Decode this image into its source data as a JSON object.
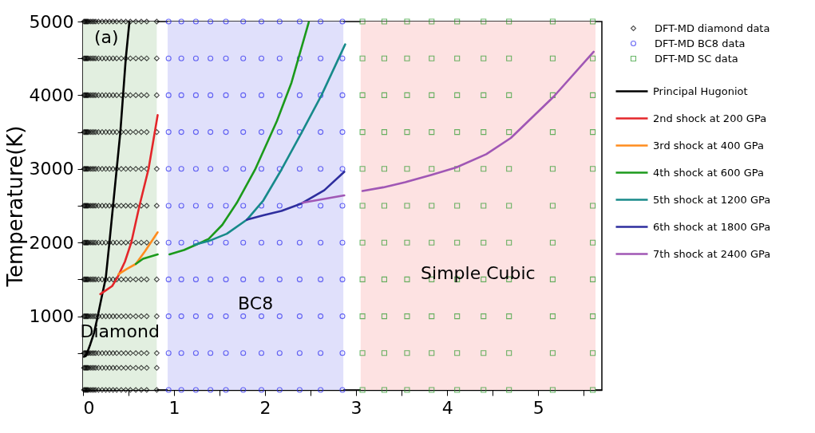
{
  "chart_data": {
    "type": "line",
    "ylabel": "Temperature(K)",
    "xlim": [
      0,
      5.7
    ],
    "ylim": [
      0,
      5000
    ],
    "xticks": [
      0,
      {
        "value": 0.5,
        "label": null
      },
      1,
      {
        "value": 1.5,
        "label": null
      },
      2,
      {
        "value": 2.5,
        "label": null
      },
      3,
      {
        "value": 3.5,
        "label": null
      },
      4,
      {
        "value": 4.5,
        "label": null
      },
      5,
      {
        "value": 5.5,
        "label": null
      }
    ],
    "yticks": [
      {
        "value": 500,
        "label": null
      },
      1000,
      {
        "value": 1500,
        "label": null
      },
      2000,
      {
        "value": 2500,
        "label": null
      },
      3000,
      {
        "value": 3500,
        "label": null
      },
      4000,
      {
        "value": 4500,
        "label": null
      },
      5000
    ],
    "grid": false,
    "legend": "right",
    "bands": [
      {
        "axis": "x",
        "from": 0,
        "to": 0.81,
        "color": "#e2efe0",
        "label": "Diamond"
      },
      {
        "axis": "x",
        "from": 0.93,
        "to": 2.86,
        "color": "#e0e0fb",
        "label": "BC8"
      },
      {
        "axis": "x",
        "from": 3.05,
        "to": 5.63,
        "color": "#fde2e2",
        "label": "Simple Cubic"
      }
    ],
    "annotations": [
      "(a)"
    ],
    "series": [
      {
        "name": "DFT-MD diamond data",
        "type": "scatter",
        "marker": "diamond",
        "color": "#000000",
        "x": [
          0.01,
          0.02,
          0.03,
          0.04,
          0.05,
          0.06,
          0.08,
          0.1,
          0.12,
          0.14,
          0.17,
          0.21,
          0.25,
          0.29,
          0.33,
          0.37,
          0.42,
          0.47,
          0.52,
          0.58,
          0.64,
          0.7,
          0.81,
          0.01,
          0.02,
          0.03,
          0.04,
          0.05,
          0.06,
          0.08,
          0.1,
          0.12,
          0.14,
          0.17,
          0.21,
          0.25,
          0.29,
          0.33,
          0.37,
          0.42,
          0.47,
          0.52,
          0.58,
          0.64,
          0.7,
          0.81,
          0.01,
          0.02,
          0.03,
          0.04,
          0.05,
          0.06,
          0.08,
          0.1,
          0.12,
          0.14,
          0.17,
          0.21,
          0.25,
          0.29,
          0.33,
          0.37,
          0.42,
          0.47,
          0.52,
          0.58,
          0.64,
          0.7,
          0.81,
          0.01,
          0.02,
          0.03,
          0.04,
          0.05,
          0.06,
          0.08,
          0.1,
          0.12,
          0.14,
          0.17,
          0.21,
          0.25,
          0.29,
          0.33,
          0.37,
          0.42,
          0.47,
          0.52,
          0.58,
          0.64,
          0.7,
          0.81,
          0.01,
          0.02,
          0.03,
          0.04,
          0.05,
          0.06,
          0.08,
          0.1,
          0.12,
          0.14,
          0.17,
          0.21,
          0.25,
          0.29,
          0.33,
          0.37,
          0.42,
          0.47,
          0.52,
          0.58,
          0.64,
          0.7,
          0.81,
          0.01,
          0.02,
          0.03,
          0.04,
          0.05,
          0.06,
          0.08,
          0.1,
          0.12,
          0.14,
          0.17,
          0.21,
          0.25,
          0.29,
          0.33,
          0.37,
          0.42,
          0.47,
          0.52,
          0.58,
          0.64,
          0.7,
          0.81,
          0.01,
          0.02,
          0.03,
          0.04,
          0.05,
          0.06,
          0.08,
          0.1,
          0.12,
          0.14,
          0.17,
          0.21,
          0.25,
          0.29,
          0.33,
          0.37,
          0.42,
          0.47,
          0.52,
          0.58,
          0.64,
          0.7,
          0.81,
          0.01,
          0.02,
          0.03,
          0.04,
          0.05,
          0.06,
          0.08,
          0.1,
          0.12,
          0.14,
          0.17,
          0.21,
          0.25,
          0.29,
          0.33,
          0.37,
          0.42,
          0.47,
          0.52,
          0.58,
          0.64,
          0.7,
          0.81,
          0.01,
          0.02,
          0.03,
          0.04,
          0.05,
          0.06,
          0.08,
          0.1,
          0.12,
          0.14,
          0.17,
          0.21,
          0.25,
          0.29,
          0.33,
          0.37,
          0.42,
          0.47,
          0.52,
          0.58,
          0.64,
          0.7,
          0.81,
          0.01,
          0.02,
          0.03,
          0.04,
          0.05,
          0.06,
          0.08,
          0.1,
          0.12,
          0.14,
          0.17,
          0.21,
          0.25,
          0.29,
          0.33,
          0.37,
          0.42,
          0.47,
          0.52,
          0.58,
          0.64,
          0.7,
          0.81,
          0.01,
          0.02,
          0.03,
          0.04,
          0.05,
          0.06,
          0.08,
          0.1,
          0.12,
          0.14,
          0.17,
          0.21,
          0.25,
          0.29,
          0.33,
          0.37,
          0.42,
          0.47,
          0.52,
          0.58,
          0.64,
          0.7,
          0.81,
          0.01,
          0.02,
          0.03,
          0.04,
          0.05,
          0.06,
          0.08,
          0.1,
          0.12,
          0.14,
          0.17,
          0.21,
          0.25,
          0.29,
          0.33,
          0.37,
          0.42,
          0.47,
          0.52,
          0.58,
          0.64,
          0.7,
          0.81
        ],
        "values": [
          0,
          0,
          0,
          0,
          0,
          0,
          0,
          0,
          0,
          0,
          0,
          0,
          0,
          0,
          0,
          0,
          0,
          0,
          0,
          0,
          0,
          0,
          0,
          300,
          300,
          300,
          300,
          300,
          300,
          300,
          300,
          300,
          300,
          300,
          300,
          300,
          300,
          300,
          300,
          300,
          300,
          300,
          300,
          300,
          300,
          300,
          500,
          500,
          500,
          500,
          500,
          500,
          500,
          500,
          500,
          500,
          500,
          500,
          500,
          500,
          500,
          500,
          500,
          500,
          500,
          500,
          500,
          500,
          500,
          1000,
          1000,
          1000,
          1000,
          1000,
          1000,
          1000,
          1000,
          1000,
          1000,
          1000,
          1000,
          1000,
          1000,
          1000,
          1000,
          1000,
          1000,
          1000,
          1000,
          1000,
          1000,
          1000,
          1500,
          1500,
          1500,
          1500,
          1500,
          1500,
          1500,
          1500,
          1500,
          1500,
          1500,
          1500,
          1500,
          1500,
          1500,
          1500,
          1500,
          1500,
          1500,
          1500,
          1500,
          1500,
          1500,
          2000,
          2000,
          2000,
          2000,
          2000,
          2000,
          2000,
          2000,
          2000,
          2000,
          2000,
          2000,
          2000,
          2000,
          2000,
          2000,
          2000,
          2000,
          2000,
          2000,
          2000,
          2000,
          2000,
          2500,
          2500,
          2500,
          2500,
          2500,
          2500,
          2500,
          2500,
          2500,
          2500,
          2500,
          2500,
          2500,
          2500,
          2500,
          2500,
          2500,
          2500,
          2500,
          2500,
          2500,
          2500,
          2500,
          3000,
          3000,
          3000,
          3000,
          3000,
          3000,
          3000,
          3000,
          3000,
          3000,
          3000,
          3000,
          3000,
          3000,
          3000,
          3000,
          3000,
          3000,
          3000,
          3000,
          3000,
          3000,
          3000,
          3500,
          3500,
          3500,
          3500,
          3500,
          3500,
          3500,
          3500,
          3500,
          3500,
          3500,
          3500,
          3500,
          3500,
          3500,
          3500,
          3500,
          3500,
          3500,
          3500,
          3500,
          3500,
          3500,
          4000,
          4000,
          4000,
          4000,
          4000,
          4000,
          4000,
          4000,
          4000,
          4000,
          4000,
          4000,
          4000,
          4000,
          4000,
          4000,
          4000,
          4000,
          4000,
          4000,
          4000,
          4000,
          4000,
          4500,
          4500,
          4500,
          4500,
          4500,
          4500,
          4500,
          4500,
          4500,
          4500,
          4500,
          4500,
          4500,
          4500,
          4500,
          4500,
          4500,
          4500,
          4500,
          4500,
          4500,
          4500,
          4500,
          5000,
          5000,
          5000,
          5000,
          5000,
          5000,
          5000,
          5000,
          5000,
          5000,
          5000,
          5000,
          5000,
          5000,
          5000,
          5000,
          5000,
          5000,
          5000,
          5000,
          5000,
          5000,
          5000
        ]
      },
      {
        "name": "DFT-MD BC8 data",
        "type": "scatter",
        "marker": "circle",
        "color": "#2b2bef",
        "x": [
          0.94,
          1.08,
          1.24,
          1.4,
          1.57,
          1.76,
          1.96,
          2.16,
          2.38,
          2.61,
          2.85,
          0.94,
          1.08,
          1.24,
          1.4,
          1.57,
          1.76,
          1.96,
          2.16,
          2.38,
          2.61,
          2.85,
          0.94,
          1.08,
          1.24,
          1.4,
          1.57,
          1.76,
          1.96,
          2.16,
          2.38,
          2.61,
          2.85,
          0.94,
          1.08,
          1.24,
          1.4,
          1.57,
          1.76,
          1.96,
          2.16,
          2.38,
          2.61,
          2.85,
          0.94,
          1.08,
          1.24,
          1.4,
          1.57,
          1.76,
          1.96,
          2.16,
          2.38,
          2.61,
          2.85,
          0.94,
          1.08,
          1.24,
          1.4,
          1.57,
          1.76,
          1.96,
          2.16,
          2.38,
          2.61,
          2.85,
          0.94,
          1.08,
          1.24,
          1.4,
          1.57,
          1.76,
          1.96,
          2.16,
          2.38,
          2.61,
          2.85,
          0.94,
          1.08,
          1.24,
          1.4,
          1.57,
          1.76,
          1.96,
          2.16,
          2.38,
          2.61,
          2.85,
          0.94,
          1.08,
          1.24,
          1.4,
          1.57,
          1.76,
          1.96,
          2.16,
          2.38,
          2.61,
          2.85,
          0.94,
          1.08,
          1.24,
          1.4,
          1.57,
          1.76,
          1.96,
          2.16,
          2.38,
          2.61,
          2.85,
          0.94,
          1.08,
          1.24,
          1.4,
          1.57,
          1.76,
          1.96,
          2.16,
          2.38,
          2.61,
          2.85
        ],
        "values": [
          0,
          0,
          0,
          0,
          0,
          0,
          0,
          0,
          0,
          0,
          0,
          500,
          500,
          500,
          500,
          500,
          500,
          500,
          500,
          500,
          500,
          500,
          1000,
          1000,
          1000,
          1000,
          1000,
          1000,
          1000,
          1000,
          1000,
          1000,
          1000,
          1500,
          1500,
          1500,
          1500,
          1500,
          1500,
          1500,
          1500,
          1500,
          1500,
          1500,
          2000,
          2000,
          2000,
          2000,
          2000,
          2000,
          2000,
          2000,
          2000,
          2000,
          2000,
          2500,
          2500,
          2500,
          2500,
          2500,
          2500,
          2500,
          2500,
          2500,
          2500,
          2500,
          3000,
          3000,
          3000,
          3000,
          3000,
          3000,
          3000,
          3000,
          3000,
          3000,
          3000,
          3500,
          3500,
          3500,
          3500,
          3500,
          3500,
          3500,
          3500,
          3500,
          3500,
          3500,
          4000,
          4000,
          4000,
          4000,
          4000,
          4000,
          4000,
          4000,
          4000,
          4000,
          4000,
          4500,
          4500,
          4500,
          4500,
          4500,
          4500,
          4500,
          4500,
          4500,
          4500,
          4500,
          5000,
          5000,
          5000,
          5000,
          5000,
          5000,
          5000,
          5000,
          5000,
          5000,
          5000
        ]
      },
      {
        "name": "DFT-MD SC data",
        "type": "scatter",
        "marker": "square",
        "color": "#2a9a2a",
        "x": [
          3.07,
          3.31,
          3.56,
          3.83,
          4.11,
          4.4,
          4.68,
          5.16,
          5.6,
          3.07,
          3.31,
          3.56,
          3.83,
          4.11,
          4.4,
          4.68,
          5.16,
          5.6,
          3.07,
          3.31,
          3.56,
          3.83,
          4.11,
          4.4,
          4.68,
          5.16,
          5.6,
          3.07,
          3.31,
          3.56,
          3.83,
          4.11,
          4.4,
          4.68,
          5.16,
          5.6,
          3.07,
          3.31,
          3.56,
          3.83,
          4.11,
          4.4,
          4.68,
          5.16,
          5.6,
          3.07,
          3.31,
          3.56,
          3.83,
          4.11,
          4.4,
          4.68,
          5.16,
          5.6,
          3.07,
          3.31,
          3.56,
          3.83,
          4.11,
          4.4,
          4.68,
          5.16,
          5.6,
          3.07,
          3.31,
          3.56,
          3.83,
          4.11,
          4.4,
          4.68,
          5.16,
          5.6,
          3.07,
          3.31,
          3.56,
          3.83,
          4.11,
          4.4,
          4.68,
          5.16,
          5.6,
          3.07,
          3.31,
          3.56,
          3.83,
          4.11,
          4.4,
          4.68,
          5.16,
          5.6,
          3.07,
          3.31,
          3.56,
          3.83,
          4.11,
          4.4,
          4.68,
          5.16,
          5.6
        ],
        "values": [
          0,
          0,
          0,
          0,
          0,
          0,
          0,
          0,
          0,
          500,
          500,
          500,
          500,
          500,
          500,
          500,
          500,
          500,
          1000,
          1000,
          1000,
          1000,
          1000,
          1000,
          1000,
          1000,
          1000,
          1500,
          1500,
          1500,
          1500,
          1500,
          1500,
          1500,
          1500,
          1500,
          2000,
          2000,
          2000,
          2000,
          2000,
          2000,
          2000,
          2000,
          2000,
          2500,
          2500,
          2500,
          2500,
          2500,
          2500,
          2500,
          2500,
          2500,
          3000,
          3000,
          3000,
          3000,
          3000,
          3000,
          3000,
          3000,
          3000,
          3500,
          3500,
          3500,
          3500,
          3500,
          3500,
          3500,
          3500,
          3500,
          4000,
          4000,
          4000,
          4000,
          4000,
          4000,
          4000,
          4000,
          4000,
          4500,
          4500,
          4500,
          4500,
          4500,
          4500,
          4500,
          4500,
          4500,
          5000,
          5000,
          5000,
          5000,
          5000,
          5000,
          5000,
          5000,
          5000
        ]
      },
      {
        "name": "Principal Hugoniot",
        "color": "#000000",
        "x": [
          0.01,
          0.03,
          0.05,
          0.08,
          0.12,
          0.16,
          0.2,
          0.25,
          0.29,
          0.33,
          0.37,
          0.41,
          0.44,
          0.47,
          0.51
        ],
        "values": [
          450,
          460,
          520,
          620,
          770,
          990,
          1230,
          1520,
          2000,
          2500,
          3000,
          3500,
          4000,
          4500,
          5000
        ]
      },
      {
        "name": "2nd shock at 200 GPa",
        "color": "#e4262a",
        "x": [
          0.19,
          0.26,
          0.32,
          0.38,
          0.46,
          0.53,
          0.62,
          0.72,
          0.82
        ],
        "values": [
          1300,
          1360,
          1410,
          1530,
          1740,
          2000,
          2500,
          3000,
          3730
        ]
      },
      {
        "name": "3rd shock at 400 GPa",
        "color": "#ff8c1e",
        "x": [
          0.39,
          0.48,
          0.58,
          0.68,
          0.82
        ],
        "values": [
          1570,
          1640,
          1710,
          1880,
          2140
        ]
      },
      {
        "name": "4th shock at 600 GPa",
        "color": "#1b9a1b",
        "x": [
          0.58,
          0.66,
          0.74,
          0.82,
          0.88,
          0.95,
          1.11,
          1.24,
          1.38,
          1.53,
          1.69,
          1.89,
          2.13,
          2.29,
          2.48
        ],
        "values": [
          1710,
          1780,
          1810,
          1840,
          null,
          1840,
          1900,
          1970,
          2050,
          2240,
          2540,
          2990,
          3650,
          4170,
          4990
        ]
      },
      {
        "name": "5th shock at 1200 GPa",
        "color": "#178a8a",
        "x": [
          1.22,
          1.38,
          1.58,
          1.8,
          1.98,
          2.18,
          2.4,
          2.62,
          2.88
        ],
        "values": [
          1970,
          2020,
          2120,
          2310,
          2570,
          2990,
          3490,
          4000,
          4690
        ]
      },
      {
        "name": "6th shock at 1800 GPa",
        "color": "#2e2e9e",
        "x": [
          1.8,
          1.98,
          2.18,
          2.4,
          2.65,
          2.87
        ],
        "values": [
          2310,
          2370,
          2430,
          2530,
          2710,
          2960
        ]
      },
      {
        "name": "7th shock at 2400 GPa",
        "color": "#a057b5",
        "x": [
          2.41,
          2.87,
          2.97,
          3.07,
          3.3,
          3.54,
          3.83,
          4.1,
          4.43,
          4.7,
          5.17,
          5.61
        ],
        "values": [
          2540,
          2640,
          null,
          2700,
          2750,
          2820,
          2920,
          3020,
          3200,
          3420,
          3980,
          4590
        ]
      }
    ]
  }
}
